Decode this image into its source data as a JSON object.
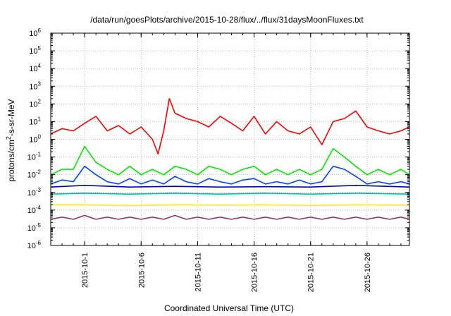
{
  "chart_data": {
    "type": "line",
    "title": "/data/run/goesPlots/archive/2015-10-28/flux/../flux/31daysMoonFluxes.txt",
    "xlabel": "Coordinated Universal Time (UTC)",
    "ylabel_parts": [
      "protons/cm",
      "2",
      "-s-sr-MeV"
    ],
    "yscale": "log",
    "ylim": [
      1e-06,
      1000000.0
    ],
    "xlim": [
      "2015-09-28",
      "2015-10-29T18:00"
    ],
    "grid": true,
    "legend": "none",
    "y_ticks": [
      {
        "base": "10",
        "exp": "-6",
        "value": 1e-06
      },
      {
        "base": "10",
        "exp": "-5",
        "value": 1e-05
      },
      {
        "base": "10",
        "exp": "-4",
        "value": 0.0001
      },
      {
        "base": "10",
        "exp": "-3",
        "value": 0.001
      },
      {
        "base": "10",
        "exp": "-2",
        "value": 0.01
      },
      {
        "base": "10",
        "exp": "-1",
        "value": 0.1
      },
      {
        "base": "10",
        "exp": "0",
        "value": 1
      },
      {
        "base": "10",
        "exp": "1",
        "value": 10
      },
      {
        "base": "10",
        "exp": "2",
        "value": 100
      },
      {
        "base": "10",
        "exp": "3",
        "value": 1000
      },
      {
        "base": "10",
        "exp": "4",
        "value": 10000
      },
      {
        "base": "10",
        "exp": "5",
        "value": 100000
      },
      {
        "base": "10",
        "exp": "6",
        "value": 1000000
      }
    ],
    "x_ticks": [
      "2015-10-1",
      "2015-10-6",
      "2015-10-11",
      "2015-10-16",
      "2015-10-21",
      "2015-10-26"
    ],
    "x_tick_dates": [
      "2015-10-01",
      "2015-10-06",
      "2015-10-11",
      "2015-10-16",
      "2015-10-21",
      "2015-10-26"
    ],
    "series": [
      {
        "color": "#ff0000",
        "x": [
          "2015-09-28",
          "2015-09-29",
          "2015-09-30",
          "2015-10-01",
          "2015-10-02",
          "2015-10-03",
          "2015-10-04",
          "2015-10-05",
          "2015-10-06",
          "2015-10-07",
          "2015-10-07T12:00",
          "2015-10-08",
          "2015-10-08T12:00",
          "2015-10-09",
          "2015-10-10",
          "2015-10-11",
          "2015-10-12",
          "2015-10-13",
          "2015-10-14",
          "2015-10-15",
          "2015-10-16",
          "2015-10-17",
          "2015-10-18",
          "2015-10-19",
          "2015-10-20",
          "2015-10-21",
          "2015-10-22",
          "2015-10-23",
          "2015-10-24",
          "2015-10-25",
          "2015-10-26",
          "2015-10-27",
          "2015-10-28",
          "2015-10-29",
          "2015-10-29T18:00"
        ],
        "values": [
          2,
          4,
          3,
          8,
          20,
          3,
          6,
          2,
          5,
          1,
          0.15,
          3,
          200,
          30,
          15,
          10,
          5,
          20,
          8,
          3,
          20,
          2,
          10,
          3,
          2,
          5,
          0.5,
          10,
          15,
          40,
          5,
          3,
          2,
          3,
          5
        ]
      },
      {
        "color": "#00ee00",
        "x": [
          "2015-09-28",
          "2015-09-29",
          "2015-09-30",
          "2015-10-01",
          "2015-10-02",
          "2015-10-03",
          "2015-10-04",
          "2015-10-05",
          "2015-10-06",
          "2015-10-07",
          "2015-10-08",
          "2015-10-09",
          "2015-10-10",
          "2015-10-11",
          "2015-10-12",
          "2015-10-13",
          "2015-10-14",
          "2015-10-15",
          "2015-10-16",
          "2015-10-17",
          "2015-10-18",
          "2015-10-19",
          "2015-10-20",
          "2015-10-21",
          "2015-10-22",
          "2015-10-23",
          "2015-10-24",
          "2015-10-25",
          "2015-10-26",
          "2015-10-27",
          "2015-10-28",
          "2015-10-29",
          "2015-10-29T18:00"
        ],
        "values": [
          0.01,
          0.02,
          0.02,
          0.4,
          0.05,
          0.02,
          0.01,
          0.03,
          0.01,
          0.02,
          0.01,
          0.03,
          0.02,
          0.01,
          0.03,
          0.02,
          0.01,
          0.02,
          0.03,
          0.01,
          0.02,
          0.01,
          0.02,
          0.01,
          0.02,
          0.3,
          0.1,
          0.03,
          0.01,
          0.02,
          0.01,
          0.02,
          0.01
        ]
      },
      {
        "color": "#0044ff",
        "x": [
          "2015-09-28",
          "2015-09-29",
          "2015-09-30",
          "2015-10-01",
          "2015-10-02",
          "2015-10-03",
          "2015-10-04",
          "2015-10-05",
          "2015-10-06",
          "2015-10-07",
          "2015-10-08",
          "2015-10-09",
          "2015-10-10",
          "2015-10-11",
          "2015-10-12",
          "2015-10-13",
          "2015-10-14",
          "2015-10-15",
          "2015-10-16",
          "2015-10-17",
          "2015-10-18",
          "2015-10-19",
          "2015-10-20",
          "2015-10-21",
          "2015-10-22",
          "2015-10-23",
          "2015-10-24",
          "2015-10-25",
          "2015-10-26",
          "2015-10-27",
          "2015-10-28",
          "2015-10-29",
          "2015-10-29T18:00"
        ],
        "values": [
          0.003,
          0.005,
          0.004,
          0.03,
          0.01,
          0.004,
          0.003,
          0.006,
          0.003,
          0.005,
          0.003,
          0.008,
          0.004,
          0.003,
          0.006,
          0.004,
          0.003,
          0.005,
          0.006,
          0.003,
          0.004,
          0.003,
          0.005,
          0.003,
          0.004,
          0.03,
          0.02,
          0.008,
          0.003,
          0.004,
          0.003,
          0.004,
          0.003
        ]
      },
      {
        "color": "#0000cc",
        "x": [
          "2015-09-28",
          "2015-10-01",
          "2015-10-05",
          "2015-10-09",
          "2015-10-13",
          "2015-10-17",
          "2015-10-21",
          "2015-10-25",
          "2015-10-29T18:00"
        ],
        "values": [
          0.002,
          0.0025,
          0.002,
          0.0022,
          0.002,
          0.0021,
          0.002,
          0.0025,
          0.002
        ]
      },
      {
        "color": "#00bbaa",
        "x": [
          "2015-09-28",
          "2015-10-01",
          "2015-10-05",
          "2015-10-09",
          "2015-10-13",
          "2015-10-17",
          "2015-10-21",
          "2015-10-25",
          "2015-10-29T18:00"
        ],
        "values": [
          0.0008,
          0.0009,
          0.0008,
          0.0009,
          0.0008,
          0.0009,
          0.0008,
          0.0009,
          0.0008
        ]
      },
      {
        "color": "#ffee00",
        "x": [
          "2015-09-28",
          "2015-10-01",
          "2015-10-05",
          "2015-10-09",
          "2015-10-13",
          "2015-10-17",
          "2015-10-21",
          "2015-10-25",
          "2015-10-29T18:00"
        ],
        "values": [
          0.0002,
          0.0002,
          0.00018,
          0.0002,
          0.00019,
          0.0002,
          0.00018,
          0.0002,
          0.00019
        ]
      },
      {
        "color": "#993366",
        "x": [
          "2015-09-28",
          "2015-09-29",
          "2015-09-30",
          "2015-10-01",
          "2015-10-02",
          "2015-10-03",
          "2015-10-04",
          "2015-10-05",
          "2015-10-06",
          "2015-10-07",
          "2015-10-08",
          "2015-10-09",
          "2015-10-10",
          "2015-10-11",
          "2015-10-12",
          "2015-10-13",
          "2015-10-14",
          "2015-10-15",
          "2015-10-16",
          "2015-10-17",
          "2015-10-18",
          "2015-10-19",
          "2015-10-20",
          "2015-10-21",
          "2015-10-22",
          "2015-10-23",
          "2015-10-24",
          "2015-10-25",
          "2015-10-26",
          "2015-10-27",
          "2015-10-28",
          "2015-10-29",
          "2015-10-29T18:00"
        ],
        "values": [
          3e-05,
          4e-05,
          3e-05,
          5e-05,
          3e-05,
          4e-05,
          3e-05,
          4e-05,
          3e-05,
          4e-05,
          3e-05,
          5e-05,
          3e-05,
          4e-05,
          3e-05,
          4e-05,
          3e-05,
          4e-05,
          3e-05,
          4e-05,
          3e-05,
          4e-05,
          3e-05,
          4e-05,
          3e-05,
          4e-05,
          3e-05,
          4e-05,
          3e-05,
          4e-05,
          3e-05,
          4e-05,
          3e-05
        ]
      }
    ]
  }
}
